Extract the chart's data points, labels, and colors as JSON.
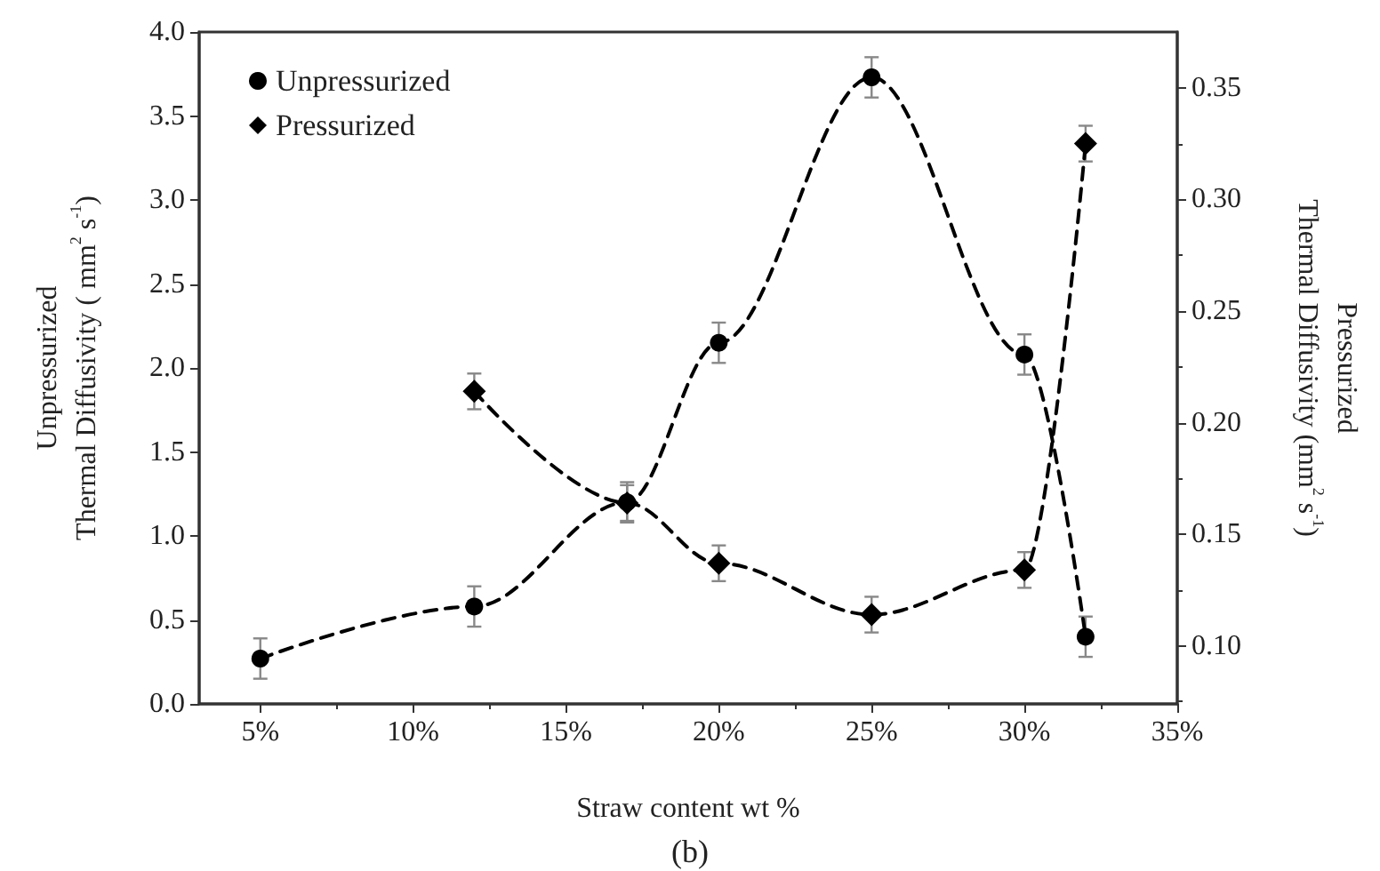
{
  "chart_data": {
    "type": "line",
    "xlabel": "Straw content wt %",
    "ylabel": "Unpressurized\nThermal Diffusivity ( mm$^{2}$ s$^{-1}$)",
    "y2label": "Pressurized\nThermal Diffusivity (mm$^{2}$ s$^{-1}$)",
    "annotations": [
      "(b)"
    ],
    "xlim": [
      3,
      35
    ],
    "xticks": [
      {
        "value": 5,
        "label": "5%"
      },
      {
        "value": 10,
        "label": "10%"
      },
      {
        "value": 15,
        "label": "15%"
      },
      {
        "value": 20,
        "label": "20%"
      },
      {
        "value": 25,
        "label": "25%"
      },
      {
        "value": 30,
        "label": "30%"
      },
      {
        "value": 35,
        "label": "35%"
      }
    ],
    "ylim": [
      0,
      4
    ],
    "yticks": [
      {
        "value": 0,
        "label": "0.0"
      },
      0.5,
      {
        "value": 1,
        "label": "1.0"
      },
      1.5,
      {
        "value": 2,
        "label": "2.0"
      },
      2.5,
      {
        "value": 3,
        "label": "3.0"
      },
      3.5,
      {
        "value": 4,
        "label": "4.0"
      }
    ],
    "y2lim": [
      0.074,
      0.375
    ],
    "y2ticks": [
      {
        "value": 0.1,
        "label": "0.10"
      },
      0.15,
      {
        "value": 0.2,
        "label": "0.20"
      },
      0.25,
      {
        "value": 0.3,
        "label": "0.30"
      },
      0.35
    ],
    "series": [
      {
        "name": "Unpressurized",
        "color": "#000000",
        "marker": "circle",
        "x": [
          5,
          12,
          17,
          20,
          25,
          30,
          32
        ],
        "values": [
          0.27,
          0.58,
          1.2,
          2.15,
          3.73,
          2.08,
          0.4
        ],
        "errors": [
          0.12,
          0.12,
          0.12,
          0.12,
          0.12,
          0.12,
          0.12
        ]
      },
      {
        "name": "Pressurized",
        "color": "#000000",
        "marker": "diamond",
        "axis": "y2",
        "x": [
          12,
          17,
          20,
          25,
          30,
          32
        ],
        "values": [
          0.214,
          0.164,
          0.137,
          0.114,
          0.134,
          0.325
        ],
        "errors": [
          0.008,
          0.008,
          0.008,
          0.008,
          0.008,
          0.008
        ]
      }
    ],
    "line_style": "dashed",
    "legend": "top left",
    "grid": false
  }
}
